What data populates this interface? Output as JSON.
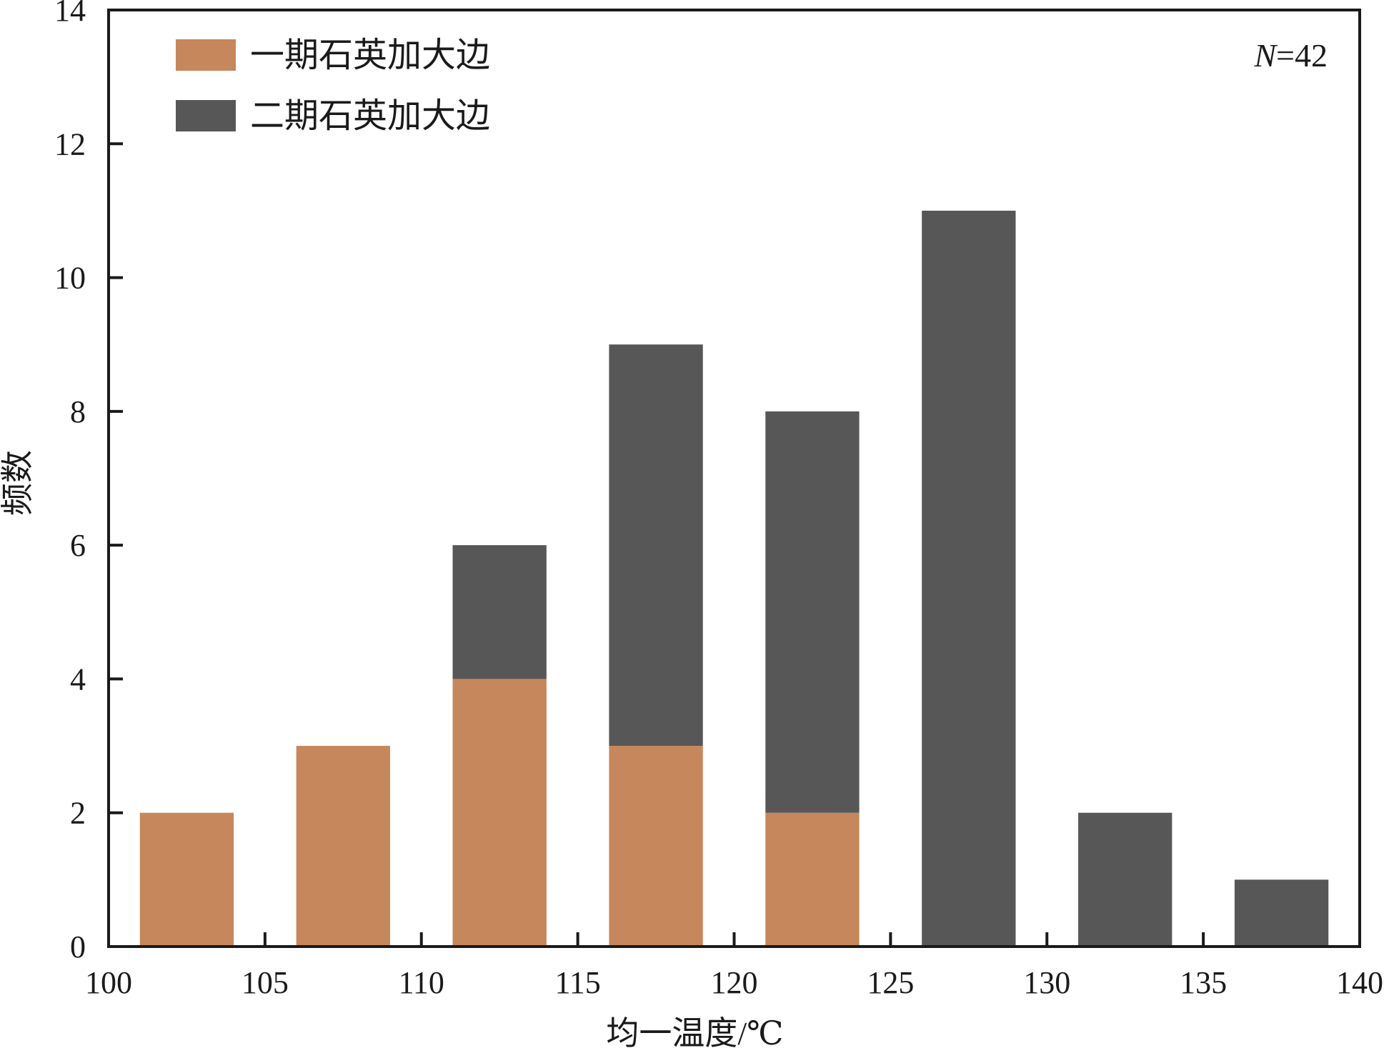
{
  "chart_data": {
    "type": "bar",
    "stacked": true,
    "title": "",
    "xlabel": "均一温度/℃",
    "ylabel": "频数",
    "xlim": [
      100,
      140
    ],
    "ylim": [
      0,
      14
    ],
    "x_ticks": [
      "100",
      "105",
      "110",
      "115",
      "120",
      "125",
      "130",
      "135",
      "140"
    ],
    "y_ticks": [
      "0",
      "2",
      "4",
      "6",
      "8",
      "10",
      "12",
      "14"
    ],
    "bins": [
      {
        "start": 101,
        "end": 104
      },
      {
        "start": 106,
        "end": 109
      },
      {
        "start": 111,
        "end": 114
      },
      {
        "start": 116,
        "end": 119
      },
      {
        "start": 121,
        "end": 124
      },
      {
        "start": 126,
        "end": 129
      },
      {
        "start": 131,
        "end": 134
      },
      {
        "start": 136,
        "end": 139
      }
    ],
    "series": [
      {
        "name": "一期石英加大边",
        "color": "#c6875c",
        "values": [
          2,
          3,
          4,
          3,
          2,
          0,
          0,
          0
        ]
      },
      {
        "name": "二期石英加大边",
        "color": "#575757",
        "values": [
          0,
          0,
          2,
          6,
          6,
          11,
          2,
          1
        ]
      }
    ],
    "annotation": {
      "italic_part": "N",
      "rest": "=42"
    },
    "legend_position": "top-left",
    "grid": false
  }
}
